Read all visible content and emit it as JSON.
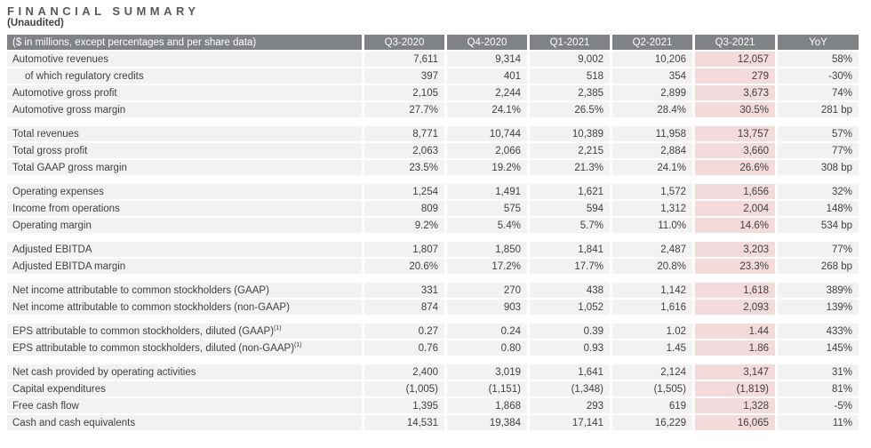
{
  "page": {
    "title": "FINANCIAL SUMMARY",
    "subtitle": "(Unaudited)"
  },
  "colors": {
    "header_bg": "#808285",
    "header_text": "#ffffff",
    "row_bg": "#f2f2f2",
    "highlight_bg": "#f2dbda",
    "body_text": "#414042",
    "title_text": "#58595b"
  },
  "table": {
    "unit_note": "($ in millions, except percentages and per share data)",
    "columns": [
      "Q3-2020",
      "Q4-2020",
      "Q1-2021",
      "Q2-2021",
      "Q3-2021",
      "YoY"
    ],
    "highlighted_column": "Q3-2021",
    "highlighted_column_index": 4,
    "sections": [
      {
        "rows": [
          {
            "label": "Automotive revenues",
            "indent": false,
            "values": [
              "7,611",
              "9,314",
              "9,002",
              "10,206",
              "12,057",
              "58%"
            ]
          },
          {
            "label": "of which regulatory credits",
            "indent": true,
            "values": [
              "397",
              "401",
              "518",
              "354",
              "279",
              "-30%"
            ]
          },
          {
            "label": "Automotive gross profit",
            "indent": false,
            "values": [
              "2,105",
              "2,244",
              "2,385",
              "2,899",
              "3,673",
              "74%"
            ]
          },
          {
            "label": "Automotive gross margin",
            "indent": false,
            "values": [
              "27.7%",
              "24.1%",
              "26.5%",
              "28.4%",
              "30.5%",
              "281 bp"
            ]
          }
        ]
      },
      {
        "rows": [
          {
            "label": "Total revenues",
            "indent": false,
            "values": [
              "8,771",
              "10,744",
              "10,389",
              "11,958",
              "13,757",
              "57%"
            ]
          },
          {
            "label": "Total gross profit",
            "indent": false,
            "values": [
              "2,063",
              "2,066",
              "2,215",
              "2,884",
              "3,660",
              "77%"
            ]
          },
          {
            "label": "Total GAAP gross margin",
            "indent": false,
            "values": [
              "23.5%",
              "19.2%",
              "21.3%",
              "24.1%",
              "26.6%",
              "308 bp"
            ]
          }
        ]
      },
      {
        "rows": [
          {
            "label": "Operating expenses",
            "indent": false,
            "values": [
              "1,254",
              "1,491",
              "1,621",
              "1,572",
              "1,656",
              "32%"
            ]
          },
          {
            "label": "Income from operations",
            "indent": false,
            "values": [
              "809",
              "575",
              "594",
              "1,312",
              "2,004",
              "148%"
            ]
          },
          {
            "label": "Operating margin",
            "indent": false,
            "values": [
              "9.2%",
              "5.4%",
              "5.7%",
              "11.0%",
              "14.6%",
              "534 bp"
            ]
          }
        ]
      },
      {
        "rows": [
          {
            "label": "Adjusted EBITDA",
            "indent": false,
            "values": [
              "1,807",
              "1,850",
              "1,841",
              "2,487",
              "3,203",
              "77%"
            ]
          },
          {
            "label": "Adjusted EBITDA margin",
            "indent": false,
            "values": [
              "20.6%",
              "17.2%",
              "17.7%",
              "20.8%",
              "23.3%",
              "268 bp"
            ]
          }
        ]
      },
      {
        "rows": [
          {
            "label": "Net income attributable to common stockholders (GAAP)",
            "indent": false,
            "values": [
              "331",
              "270",
              "438",
              "1,142",
              "1,618",
              "389%"
            ]
          },
          {
            "label": "Net income attributable to common stockholders (non-GAAP)",
            "indent": false,
            "values": [
              "874",
              "903",
              "1,052",
              "1,616",
              "2,093",
              "139%"
            ]
          }
        ]
      },
      {
        "rows": [
          {
            "label": "EPS attributable to common stockholders, diluted (GAAP)",
            "footnote": "(1)",
            "indent": false,
            "values": [
              "0.27",
              "0.24",
              "0.39",
              "1.02",
              "1.44",
              "433%"
            ]
          },
          {
            "label": "EPS attributable to common stockholders, diluted (non-GAAP)",
            "footnote": "(1)",
            "indent": false,
            "values": [
              "0.76",
              "0.80",
              "0.93",
              "1.45",
              "1.86",
              "145%"
            ]
          }
        ]
      },
      {
        "rows": [
          {
            "label": "Net cash provided by operating activities",
            "indent": false,
            "values": [
              "2,400",
              "3,019",
              "1,641",
              "2,124",
              "3,147",
              "31%"
            ]
          },
          {
            "label": "Capital expenditures",
            "indent": false,
            "values": [
              "(1,005)",
              "(1,151)",
              "(1,348)",
              "(1,505)",
              "(1,819)",
              "81%"
            ]
          },
          {
            "label": "Free cash flow",
            "indent": false,
            "values": [
              "1,395",
              "1,868",
              "293",
              "619",
              "1,328",
              "-5%"
            ]
          },
          {
            "label": "Cash and cash equivalents",
            "indent": false,
            "values": [
              "14,531",
              "19,384",
              "17,141",
              "16,229",
              "16,065",
              "11%"
            ]
          }
        ]
      }
    ]
  }
}
